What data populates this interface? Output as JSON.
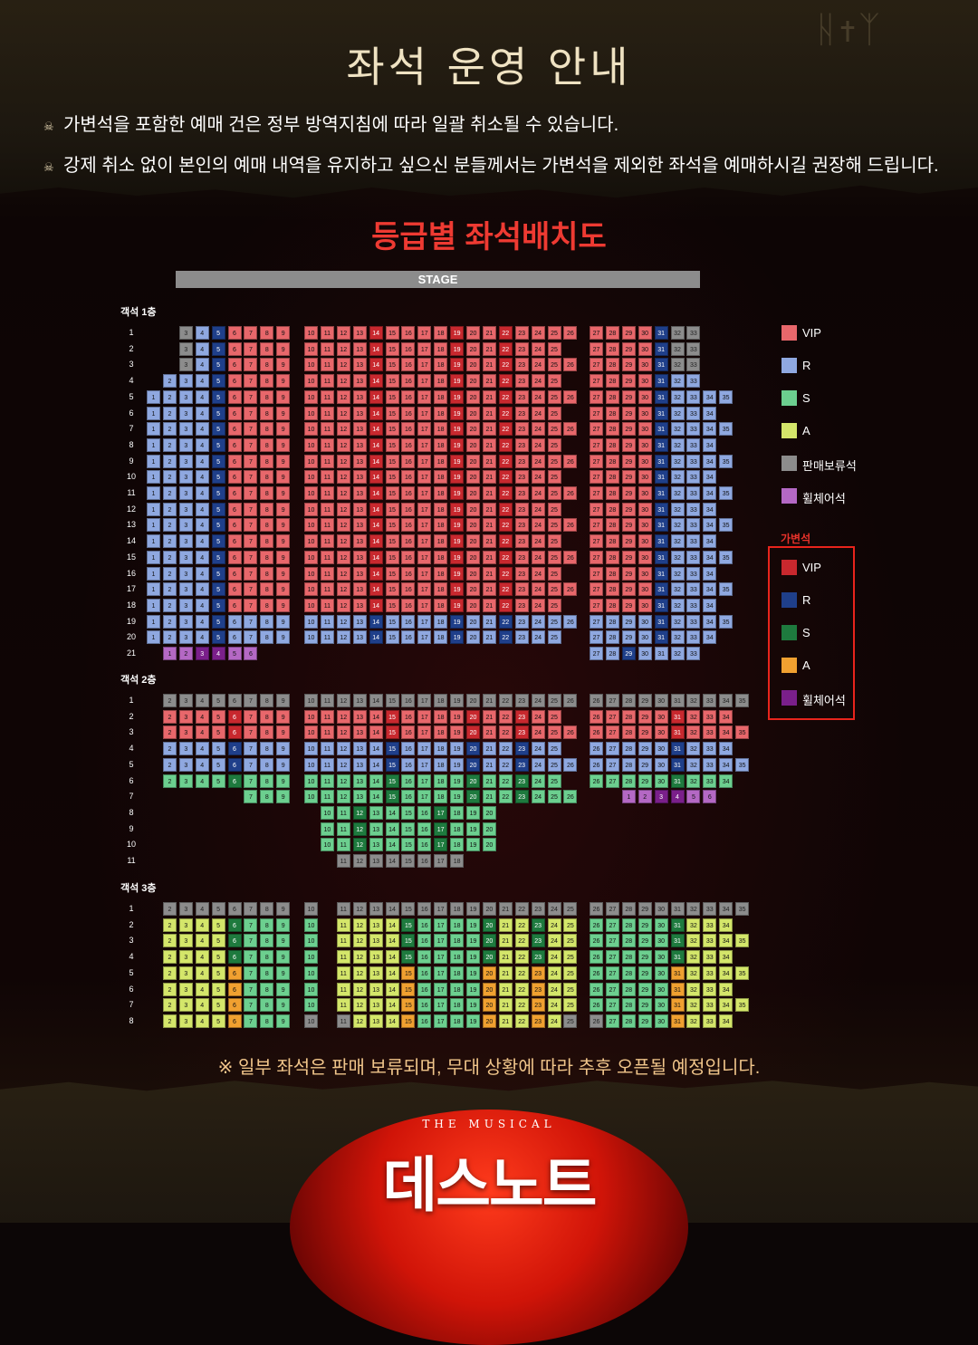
{
  "page": {
    "title": "좌석 운영 안내",
    "notices": [
      "가변석을 포함한 예매 건은 정부 방역지침에 따라 일괄 취소될 수 있습니다.",
      "강제 취소 없이 본인의 예매 내역을 유지하고 싶으신 분들께서는 가변석을 제외한 좌석을 예매하시길 권장해 드립니다."
    ],
    "subtitle": "등급별 좌석배치도",
    "stage_label": "STAGE",
    "floors": [
      "객석 1층",
      "객석 2층",
      "객석 3층"
    ],
    "footnote": "※ 일부 좌석은 판매 보류되며, 무대 상황에 따라 추후 오픈될 예정입니다.",
    "musical_label": "THE MUSICAL",
    "logo_text": "데스노트"
  },
  "legend": {
    "main": [
      {
        "label": "VIP",
        "color": "#e8676b"
      },
      {
        "label": "R",
        "color": "#8fa8e0"
      },
      {
        "label": "S",
        "color": "#6ccf8f"
      },
      {
        "label": "A",
        "color": "#d4e66a"
      },
      {
        "label": "판매보류석",
        "color": "#8c8c8c"
      },
      {
        "label": "휠체어석",
        "color": "#b468c4"
      }
    ],
    "flex_title": "가변석",
    "flex": [
      {
        "label": "VIP",
        "color": "#c8282e"
      },
      {
        "label": "R",
        "color": "#1f3f8a"
      },
      {
        "label": "S",
        "color": "#1e7a3e"
      },
      {
        "label": "A",
        "color": "#f0a030"
      },
      {
        "label": "휠체어석",
        "color": "#7a1f8a"
      }
    ]
  },
  "seat_colors": {
    "V": "#e8676b",
    "R": "#8fa8e0",
    "S": "#6ccf8f",
    "A": "#d4e66a",
    "G": "#8c8c8c",
    "W": "#b468c4",
    "v": "#c8282e",
    "r": "#1f3f8a",
    "s": "#1e7a3e",
    "a": "#f0a030",
    "w": "#7a1f8a"
  },
  "seat_map": {
    "floor1": {
      "rows": [
        "1",
        "2",
        "3",
        "4",
        "5",
        "6",
        "7",
        "8",
        "9",
        "10",
        "11",
        "12",
        "13",
        "14",
        "15",
        "16",
        "17",
        "18",
        "19",
        "20",
        "21"
      ],
      "left_first": [
        3,
        3,
        3,
        2,
        1,
        1,
        1,
        1,
        1,
        1,
        1,
        1,
        1,
        1,
        1,
        1,
        1,
        1,
        1,
        1,
        1
      ],
      "left_rowtype": [
        "V",
        "V",
        "V",
        "V",
        "V",
        "V",
        "V",
        "V",
        "V",
        "V",
        "V",
        "V",
        "V",
        "V",
        "V",
        "V",
        "V",
        "V",
        "R",
        "R",
        "W"
      ],
      "right_last": [
        33,
        33,
        33,
        33,
        35,
        34,
        35,
        34,
        35,
        34,
        35,
        34,
        35,
        34,
        35,
        34,
        35,
        34,
        35,
        34,
        33
      ],
      "center_last": [
        26,
        25,
        26,
        25,
        26,
        25,
        26,
        25,
        26,
        25,
        26,
        25,
        26,
        25,
        26,
        25,
        26,
        25,
        26,
        25,
        0
      ]
    },
    "floor2": {
      "rows": [
        "1",
        "2",
        "3",
        "4",
        "5",
        "6",
        "7",
        "8",
        "9",
        "10",
        "11"
      ],
      "row_types": [
        "G",
        "V",
        "V",
        "R",
        "R",
        "S",
        "S",
        "S",
        "S",
        "S",
        "G"
      ]
    },
    "floor3": {
      "rows": [
        "1",
        "2",
        "3",
        "4",
        "5",
        "6",
        "7",
        "8"
      ],
      "row_types": [
        "G",
        "S",
        "S",
        "S",
        "A",
        "A",
        "A",
        "A"
      ]
    }
  }
}
